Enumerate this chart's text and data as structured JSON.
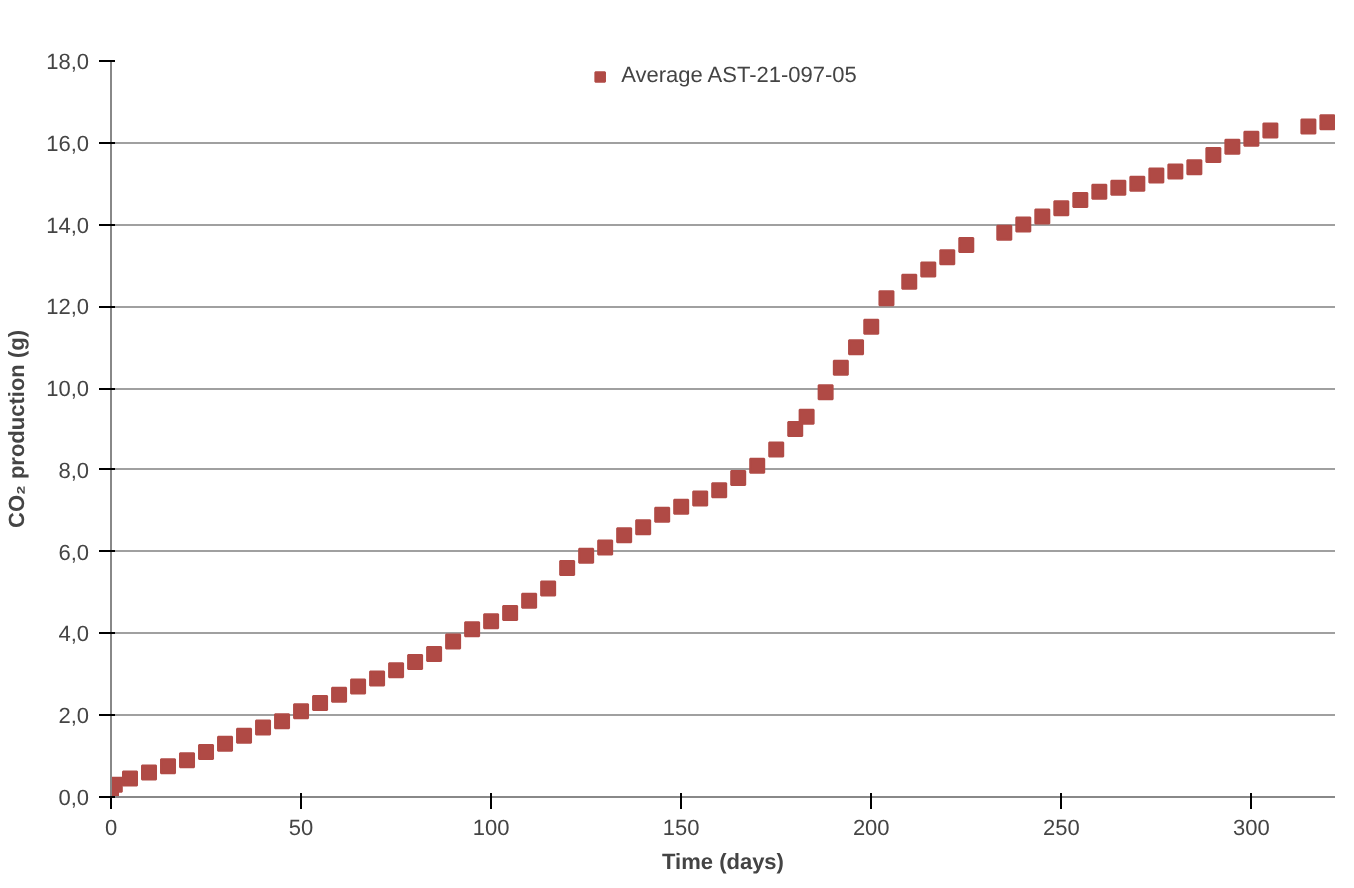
{
  "chart_data": {
    "type": "scatter",
    "xlabel": "Time (days)",
    "ylabel": "CO₂ production (g)",
    "xlim": [
      0,
      322
    ],
    "ylim": [
      0,
      18
    ],
    "xticks": [
      0,
      50,
      100,
      150,
      200,
      250,
      300
    ],
    "yticks": [
      {
        "value": 0,
        "label": "0,0"
      },
      {
        "value": 2,
        "label": "2,0"
      },
      {
        "value": 4,
        "label": "4,0"
      },
      {
        "value": 6,
        "label": "6,0"
      },
      {
        "value": 8,
        "label": "8,0"
      },
      {
        "value": 10,
        "label": "10,0"
      },
      {
        "value": 12,
        "label": "12,0"
      },
      {
        "value": 14,
        "label": "14,0"
      },
      {
        "value": 16,
        "label": "16,0"
      },
      {
        "value": 18,
        "label": "18,0"
      }
    ],
    "grid": "y",
    "legend": "top",
    "marker": "square",
    "series": [
      {
        "name": "Average AST-21-097-05",
        "color": "#b04a45",
        "x": [
          0,
          1,
          5,
          10,
          15,
          20,
          25,
          30,
          35,
          40,
          45,
          50,
          55,
          60,
          65,
          70,
          75,
          80,
          85,
          90,
          95,
          100,
          105,
          110,
          115,
          120,
          125,
          130,
          135,
          140,
          145,
          150,
          155,
          160,
          165,
          170,
          175,
          180,
          183,
          188,
          192,
          196,
          200,
          204,
          210,
          215,
          220,
          225,
          235,
          240,
          245,
          250,
          255,
          260,
          265,
          270,
          275,
          280,
          285,
          290,
          295,
          300,
          305,
          315,
          320
        ],
        "values": [
          0.1,
          0.3,
          0.45,
          0.6,
          0.75,
          0.9,
          1.1,
          1.3,
          1.5,
          1.7,
          1.85,
          2.1,
          2.3,
          2.5,
          2.7,
          2.9,
          3.1,
          3.3,
          3.5,
          3.8,
          4.1,
          4.3,
          4.5,
          4.8,
          5.1,
          5.6,
          5.9,
          6.1,
          6.4,
          6.6,
          6.9,
          7.1,
          7.3,
          7.5,
          7.8,
          8.1,
          8.5,
          9.0,
          9.3,
          9.9,
          10.5,
          11.0,
          11.5,
          12.2,
          12.6,
          12.9,
          13.2,
          13.5,
          13.8,
          14.0,
          14.2,
          14.4,
          14.6,
          14.8,
          14.9,
          15.0,
          15.2,
          15.3,
          15.4,
          15.7,
          15.9,
          16.1,
          16.3,
          16.4,
          16.5
        ]
      }
    ]
  }
}
